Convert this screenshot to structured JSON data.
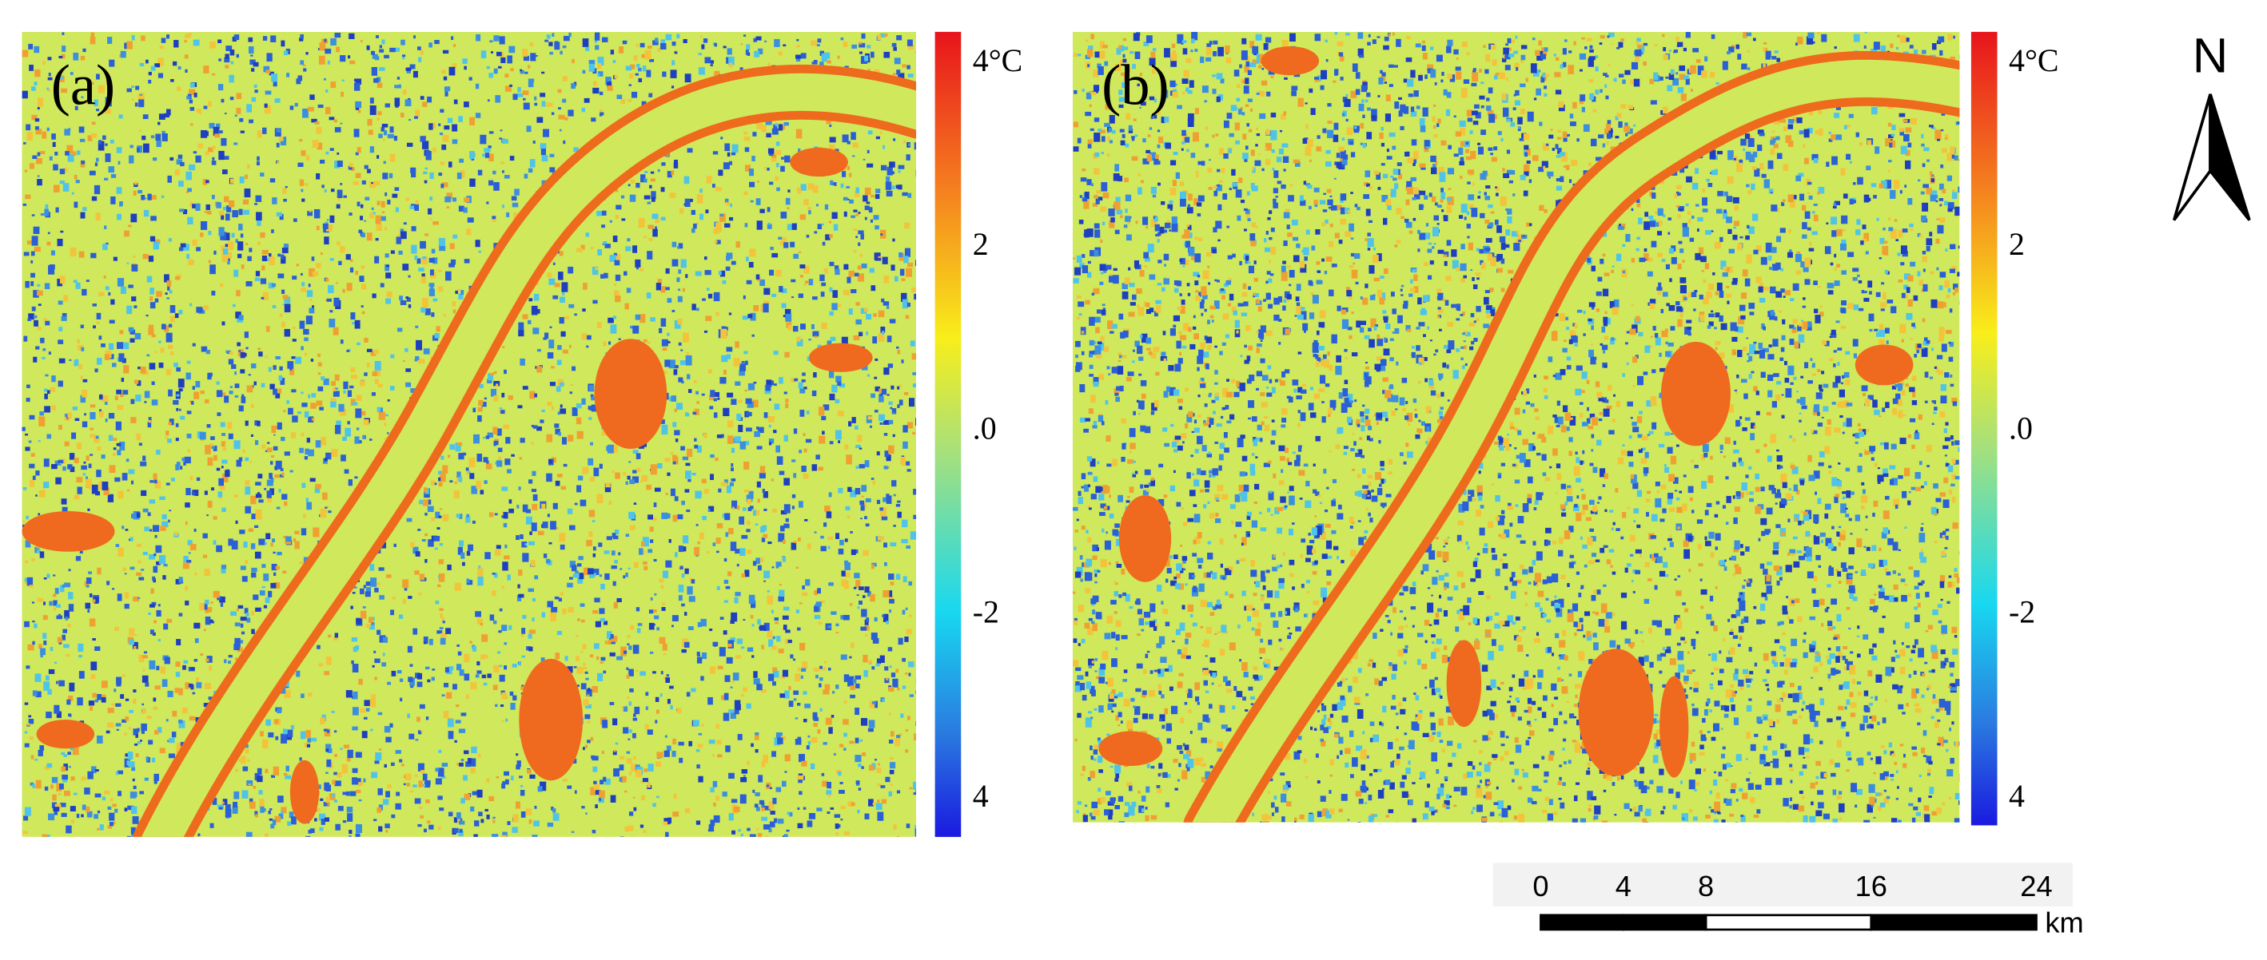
{
  "panels": [
    {
      "label": "(a)",
      "colorbar_labels": [
        "4°C",
        "2",
        ".0",
        "-2",
        "4"
      ]
    },
    {
      "label": "(b)",
      "colorbar_labels": [
        "4°C",
        "2",
        ".0",
        "-2",
        "4"
      ]
    }
  ],
  "north_label": "N",
  "scale_bar": {
    "ticks": [
      0,
      4,
      8,
      16,
      24
    ],
    "unit": "km"
  }
}
